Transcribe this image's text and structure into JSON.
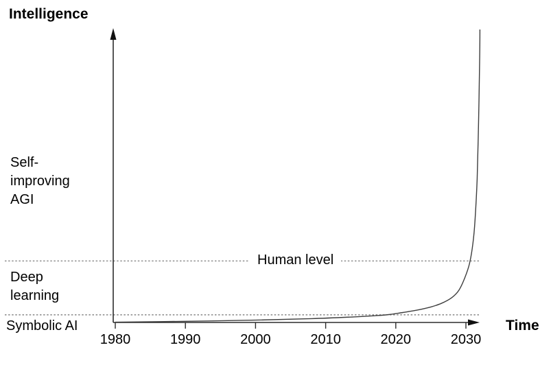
{
  "axis_labels": {
    "y": "Intelligence",
    "x": "Time"
  },
  "reference_label": "Human level",
  "stages": {
    "agi": {
      "lines": [
        "Self-",
        "improving",
        "AGI"
      ]
    },
    "deep": {
      "lines": [
        "Deep",
        "learning"
      ]
    },
    "symbolic": {
      "lines": [
        "Symbolic AI"
      ]
    }
  },
  "chart_data": {
    "type": "line",
    "title": "",
    "xlabel": "Time",
    "ylabel": "Intelligence",
    "x_ticks": [
      1980,
      1990,
      2000,
      2010,
      2020,
      2030
    ],
    "x_range": [
      1980,
      2032
    ],
    "ylim": [
      0,
      1
    ],
    "grid": false,
    "legend": "none",
    "series": [
      {
        "name": "Intelligence",
        "x": [
          1980,
          1990,
          2000,
          2008,
          2014,
          2017,
          2019,
          2021,
          2023,
          2025,
          2026.5,
          2028,
          2029,
          2029.8,
          2030.5,
          2031,
          2031.3,
          2031.6,
          2031.8,
          2031.95,
          2032
        ],
        "y": [
          0.001,
          0.004,
          0.008,
          0.013,
          0.019,
          0.023,
          0.027,
          0.034,
          0.042,
          0.053,
          0.065,
          0.085,
          0.11,
          0.15,
          0.2,
          0.27,
          0.35,
          0.49,
          0.68,
          0.88,
          1.0
        ]
      }
    ],
    "reference_lines": [
      {
        "label": "Human level",
        "value": 0.21,
        "style": "dotted"
      },
      {
        "label": "Symbolic AI",
        "value": 0.026,
        "style": "dotted"
      }
    ],
    "stage_annotations": [
      "Self-improving AGI",
      "Deep learning",
      "Symbolic AI"
    ]
  }
}
